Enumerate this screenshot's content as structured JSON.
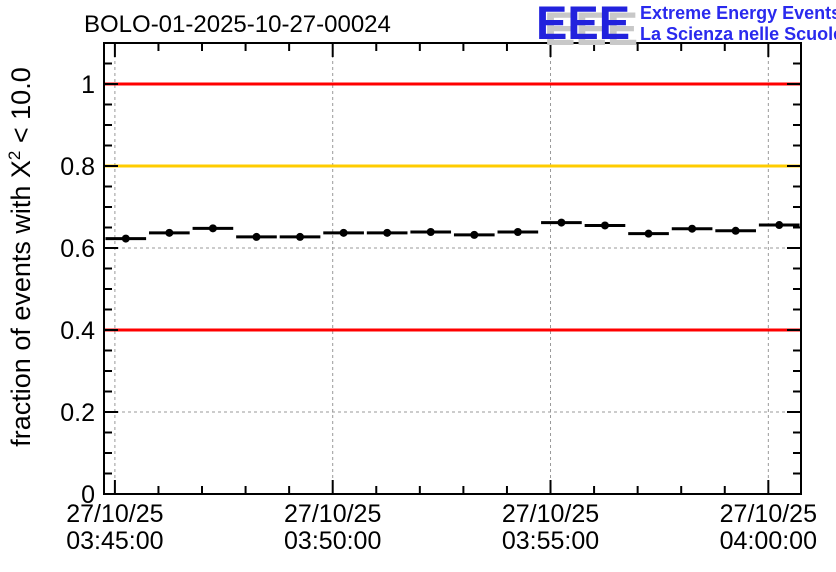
{
  "logo": {
    "acronym": "EEE",
    "line1": "Extreme Energy Events",
    "line2": "La Scienza nelle Scuole",
    "acronym_color": "#2222dd",
    "text_color": "#2a2aee",
    "shadow_color": "#c8c8c8"
  },
  "chart_data": {
    "type": "scatter",
    "title": "BOLO-01-2025-10-27-00024",
    "ylabel": "fraction of events with X^2 < 10.0",
    "ylabel_parts": {
      "pre": "fraction of events with X",
      "sup": "2",
      "post": " < 10.0"
    },
    "x_axis": {
      "kind": "time",
      "window_seconds": 960,
      "minor_step_seconds": 60,
      "minor_anchor": 15,
      "major_ticks": [
        {
          "t": 15,
          "date": "27/10/25",
          "time": "03:45:00"
        },
        {
          "t": 315,
          "date": "27/10/25",
          "time": "03:50:00"
        },
        {
          "t": 615,
          "date": "27/10/25",
          "time": "03:55:00"
        },
        {
          "t": 915,
          "date": "27/10/25",
          "time": "04:00:00"
        }
      ]
    },
    "y_axis": {
      "min": 0,
      "max": 1.1,
      "major_step": 0.2,
      "minor_step": 0.05,
      "major_ticks": [
        {
          "v": 0,
          "label": "0"
        },
        {
          "v": 0.2,
          "label": "0.2"
        },
        {
          "v": 0.4,
          "label": "0.4"
        },
        {
          "v": 0.6,
          "label": "0.6"
        },
        {
          "v": 0.8,
          "label": "0.8"
        },
        {
          "v": 1,
          "label": "1"
        }
      ]
    },
    "grid": {
      "show": true,
      "color": "#999999",
      "dash": "3,3"
    },
    "reference_lines": [
      {
        "value": 1.0,
        "color": "#ff0000"
      },
      {
        "value": 0.8,
        "color": "#ffcc00"
      },
      {
        "value": 0.4,
        "color": "#ff0000"
      }
    ],
    "series": [
      {
        "marker": "filled-circle",
        "color": "#000000",
        "x_half_width_seconds": 28,
        "x_seconds": [
          30,
          90,
          150,
          210,
          270,
          330,
          390,
          450,
          510,
          570,
          630,
          690,
          750,
          810,
          870,
          930
        ],
        "values": [
          0.623,
          0.637,
          0.648,
          0.627,
          0.627,
          0.637,
          0.637,
          0.639,
          0.632,
          0.639,
          0.662,
          0.655,
          0.635,
          0.647,
          0.642,
          0.656
        ]
      }
    ],
    "axis_color": "#000000"
  }
}
